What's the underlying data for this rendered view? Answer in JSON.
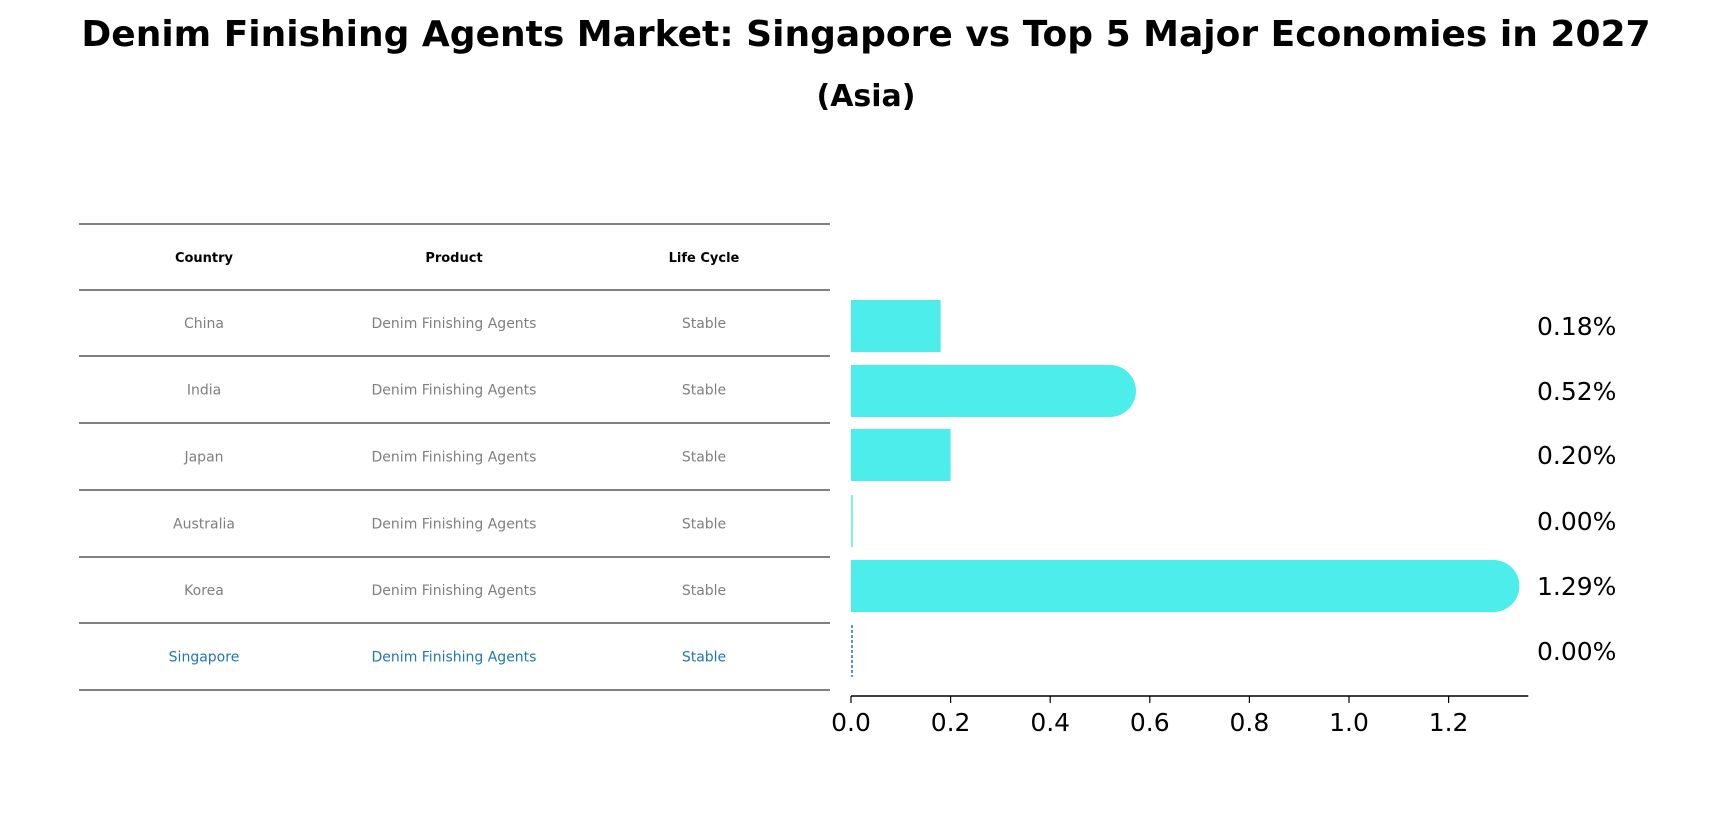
{
  "chart_data": {
    "type": "bar",
    "orientation": "horizontal",
    "title": "Denim Finishing Agents Market: Singapore vs Top 5 Major Economies in 2027",
    "subtitle": "(Asia)",
    "table": {
      "columns": [
        "Country",
        "Product",
        "Life Cycle"
      ],
      "rows": [
        {
          "country": "China",
          "product": "Denim Finishing Agents",
          "life_cycle": "Stable",
          "highlight": false
        },
        {
          "country": "India",
          "product": "Denim Finishing Agents",
          "life_cycle": "Stable",
          "highlight": false
        },
        {
          "country": "Japan",
          "product": "Denim Finishing Agents",
          "life_cycle": "Stable",
          "highlight": false
        },
        {
          "country": "Australia",
          "product": "Denim Finishing Agents",
          "life_cycle": "Stable",
          "highlight": false
        },
        {
          "country": "Korea",
          "product": "Denim Finishing Agents",
          "life_cycle": "Stable",
          "highlight": false
        },
        {
          "country": "Singapore",
          "product": "Denim Finishing Agents",
          "life_cycle": "Stable",
          "highlight": true
        }
      ]
    },
    "categories": [
      "China",
      "India",
      "Japan",
      "Australia",
      "Korea",
      "Singapore"
    ],
    "values": [
      0.18,
      0.52,
      0.2,
      0.0,
      1.29,
      0.0
    ],
    "value_labels": [
      "0.18%",
      "0.52%",
      "0.20%",
      "0.00%",
      "1.29%",
      "0.00%"
    ],
    "xlim": [
      0,
      1.36
    ],
    "xticks": [
      0.0,
      0.2,
      0.4,
      0.6,
      0.8,
      1.0,
      1.2
    ],
    "xtick_labels": [
      "0.0",
      "0.2",
      "0.4",
      "0.6",
      "0.8",
      "1.0",
      "1.2"
    ],
    "xlabel": "",
    "ylabel": "",
    "grid": false,
    "colors": {
      "bar": "#4dedec",
      "highlight_text": "#1f77b4",
      "row_text": "#7f7f7f",
      "header_text": "#000000",
      "rule": "#000000"
    }
  }
}
